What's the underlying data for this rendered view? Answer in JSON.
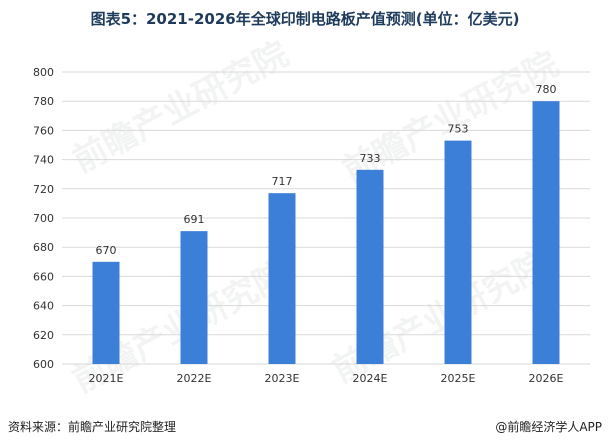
{
  "title": "图表5：2021-2026年全球印制电路板产值预测(单位：亿美元)",
  "source": "资料来源：前瞻产业研究院整理",
  "credit": "@前瞻经济学人APP",
  "watermark": "前瞻产业研究院",
  "colors": {
    "bar": "#3c7fd9",
    "grid": "#d9d9d9",
    "axis_text": "#333333"
  },
  "chart_data": {
    "type": "bar",
    "title": "图表5：2021-2026年全球印制电路板产值预测(单位：亿美元)",
    "categories": [
      "2021E",
      "2022E",
      "2023E",
      "2024E",
      "2025E",
      "2026E"
    ],
    "values": [
      670,
      691,
      717,
      733,
      753,
      780
    ],
    "ylim": [
      600,
      800
    ],
    "yticks": [
      600,
      620,
      640,
      660,
      680,
      700,
      720,
      740,
      760,
      780,
      800
    ],
    "grid": true,
    "legend": "none"
  }
}
